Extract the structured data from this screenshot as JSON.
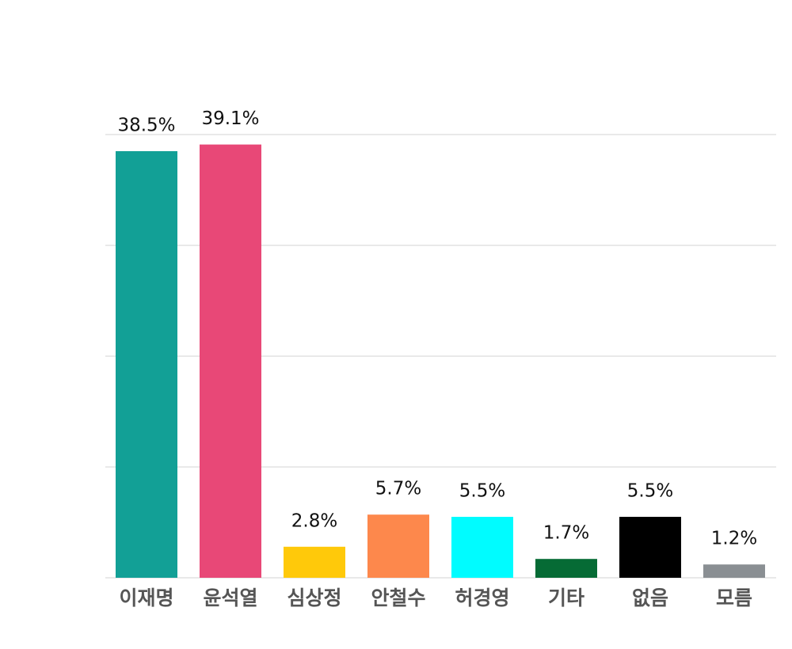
{
  "chart_data": {
    "type": "bar",
    "categories": [
      "이재명",
      "윤석열",
      "심상정",
      "안철수",
      "허경영",
      "기타",
      "없음",
      "모름"
    ],
    "values": [
      38.5,
      39.1,
      2.8,
      5.7,
      5.5,
      1.7,
      5.5,
      1.2
    ],
    "value_labels": [
      "38.5%",
      "39.1%",
      "2.8%",
      "5.7%",
      "5.5%",
      "1.7%",
      "5.5%",
      "1.2%"
    ],
    "colors": [
      "#12a096",
      "#e84877",
      "#ffc90a",
      "#fd884c",
      "#00fcff",
      "#066b35",
      "#000000",
      "#8a8f93"
    ],
    "ylim": [
      0,
      40
    ],
    "yticks": [
      0,
      10,
      20,
      30,
      40
    ],
    "grid": true
  }
}
